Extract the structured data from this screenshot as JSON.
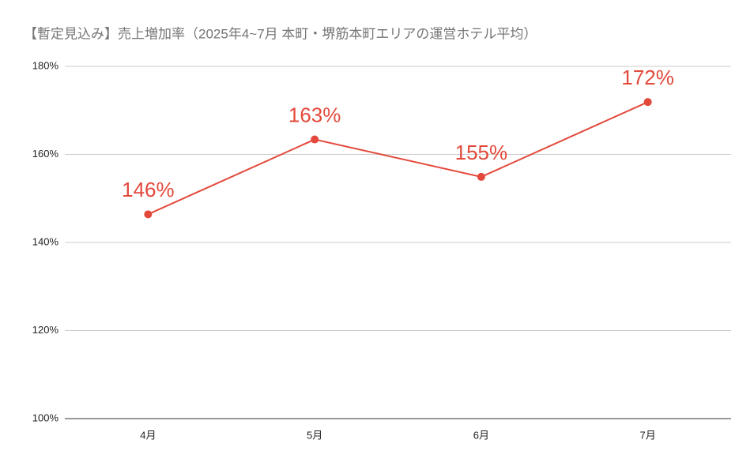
{
  "chart_data": {
    "type": "line",
    "title": "【暫定見込み】売上増加率（2025年4~7月 本町・堺筋本町エリアの運営ホテル平均）",
    "categories": [
      "4月",
      "5月",
      "6月",
      "7月"
    ],
    "series": [
      {
        "name": "売上増加率",
        "color": "#e3493b",
        "values": [
          146.4,
          163.4,
          154.9,
          171.9
        ],
        "value_labels": [
          "146%",
          "163%",
          "155%",
          "172%"
        ]
      }
    ],
    "ylim": [
      100,
      180
    ],
    "yticks": [
      {
        "value": 100,
        "label": "100%"
      },
      {
        "value": 120,
        "label": "120%"
      },
      {
        "value": 140,
        "label": "140%"
      },
      {
        "value": 160,
        "label": "160%"
      },
      {
        "value": 180,
        "label": "180%"
      }
    ],
    "grid": true
  }
}
